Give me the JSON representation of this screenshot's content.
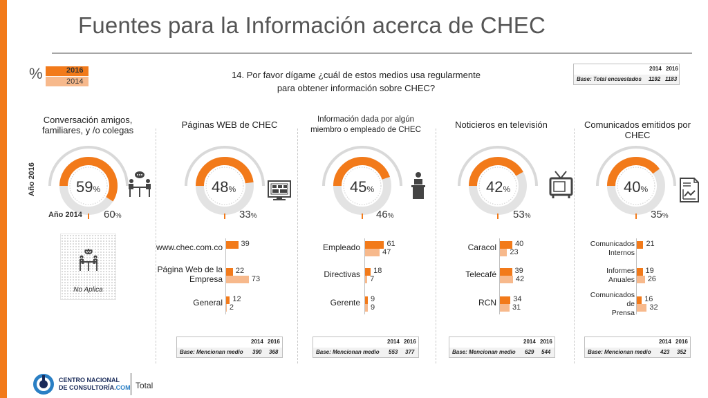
{
  "title": "Fuentes para la Información acerca de CHEC",
  "legend": {
    "symbol": "%",
    "current": "2016",
    "previous": "2014"
  },
  "question": "14. Por favor dígame ¿cuál de estos medios usa regularmente para obtener información sobre CHEC?",
  "base_total": {
    "years": [
      "2014",
      "2016"
    ],
    "label": "Base: Total encuestados",
    "values": [
      "1192",
      "1183"
    ]
  },
  "year_vertical_label": "Año 2016",
  "year_2014_label": "Año 2014",
  "no_aplica": "No Aplica",
  "footer": {
    "logo_line1": "CENTRO NACIONAL",
    "logo_line2a": "DE CONSULTORÍA.",
    "logo_line2b": "COM",
    "section": "Total"
  },
  "colors": {
    "current": "#f27a1a",
    "previous": "#f7b98c",
    "ring": "#e3e3e3",
    "accent": "#f27a1a"
  },
  "chart_data": [
    {
      "type": "bar",
      "title": "Conversación amigos, familiares, y /o colegas",
      "icon": "meeting-icon",
      "pct_2016": 59,
      "pct_2014": 60,
      "pct_2016_text": "59",
      "pct_2014_text": "60",
      "unit": "%",
      "categories": [],
      "series": []
    },
    {
      "type": "bar",
      "title": "Páginas WEB de CHEC",
      "icon": "monitor-icon",
      "pct_2016": 48,
      "pct_2014": 33,
      "pct_2016_text": "48",
      "pct_2014_text": "33",
      "unit": "%",
      "categories": [
        "www.chec.com.co",
        "Página Web de la Empresa",
        "General"
      ],
      "series": [
        {
          "name": "2016",
          "values": [
            39,
            22,
            12
          ]
        },
        {
          "name": "2014",
          "values": [
            0,
            73,
            2
          ]
        }
      ],
      "value_text": [
        [
          "39",
          ""
        ],
        [
          "22",
          "73"
        ],
        [
          "12",
          "2"
        ]
      ],
      "base": {
        "label": "Base: Mencionan medio",
        "years": [
          "2014",
          "2016"
        ],
        "values": [
          "390",
          "368"
        ]
      }
    },
    {
      "type": "bar",
      "title": "Información dada por algún miembro o empleado de CHEC",
      "icon": "speaker-icon",
      "pct_2016": 45,
      "pct_2014": 46,
      "pct_2016_text": "45",
      "pct_2014_text": "46",
      "unit": "%",
      "categories": [
        "Empleado",
        "Directivas",
        "Gerente"
      ],
      "series": [
        {
          "name": "2016",
          "values": [
            61,
            18,
            9
          ]
        },
        {
          "name": "2014",
          "values": [
            47,
            7,
            9
          ]
        }
      ],
      "value_text": [
        [
          "61",
          "47"
        ],
        [
          "18",
          "7"
        ],
        [
          "9",
          "9"
        ]
      ],
      "base": {
        "label": "Base: Mencionan medio",
        "years": [
          "2014",
          "2016"
        ],
        "values": [
          "553",
          "377"
        ]
      }
    },
    {
      "type": "bar",
      "title": "Noticieros en televisión",
      "icon": "tv-icon",
      "pct_2016": 42,
      "pct_2014": 53,
      "pct_2016_text": "42",
      "pct_2014_text": "53",
      "unit": "%",
      "categories": [
        "Caracol",
        "Telecafé",
        "RCN"
      ],
      "series": [
        {
          "name": "2016",
          "values": [
            40,
            39,
            34
          ]
        },
        {
          "name": "2014",
          "values": [
            23,
            42,
            31
          ]
        }
      ],
      "value_text": [
        [
          "40",
          "23"
        ],
        [
          "39",
          "42"
        ],
        [
          "34",
          "31"
        ]
      ],
      "base": {
        "label": "Base: Mencionan medio",
        "years": [
          "2014",
          "2016"
        ],
        "values": [
          "629",
          "544"
        ]
      }
    },
    {
      "type": "bar",
      "title": "Comunicados emitidos por CHEC",
      "icon": "document-chart-icon",
      "pct_2016": 40,
      "pct_2014": 35,
      "pct_2016_text": "40",
      "pct_2014_text": "35",
      "unit": "%",
      "categories": [
        "Comunicados Internos",
        "Informes Anuales",
        "Comunicados de Prensa"
      ],
      "series": [
        {
          "name": "2016",
          "values": [
            21,
            19,
            16
          ]
        },
        {
          "name": "2014",
          "values": [
            0,
            26,
            32
          ]
        }
      ],
      "value_text": [
        [
          "21",
          ""
        ],
        [
          "19",
          "26"
        ],
        [
          "16",
          "32"
        ]
      ],
      "base": {
        "label": "Base: Mencionan medio",
        "years": [
          "2014",
          "2016"
        ],
        "values": [
          "423",
          "352"
        ]
      }
    }
  ]
}
